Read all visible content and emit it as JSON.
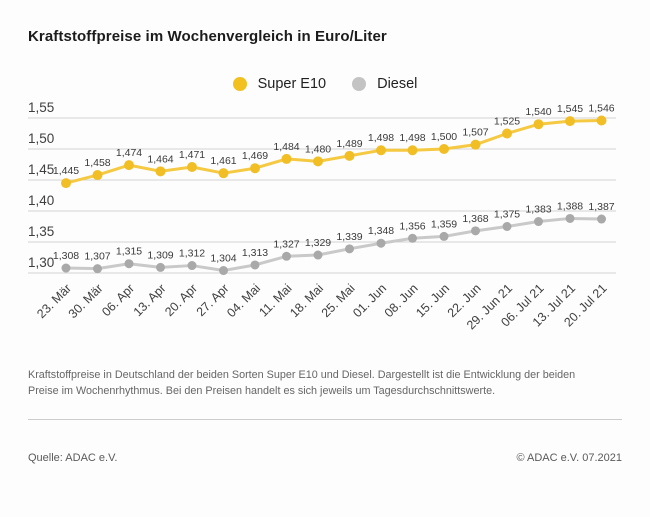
{
  "page": {
    "title": "Kraftstoffpreise im Wochenvergleich in Euro/Liter",
    "description": "Kraftstoffpreise in Deutschland der beiden Sorten Super E10 und Diesel. Dargestellt ist die Entwicklung der beiden Preise im Wochenrhythmus. Bei den Preisen handelt es sich jeweils um Tagesdurchschnittswerte.",
    "source_left": "Quelle: ADAC e.V.",
    "source_right": "© ADAC e.V. 07.2021"
  },
  "legend": [
    {
      "label": "Super E10",
      "color": "#f2c01f"
    },
    {
      "label": "Diesel",
      "color": "#c3c3c3"
    }
  ],
  "colors": {
    "grid_line": "#d2d2d2",
    "axis_text": "#3f3f3f",
    "value_label_text": "#3b3b3b",
    "super_e10_line": "#f5c942",
    "super_e10_dot": "#f1bf25",
    "diesel_line": "#c9c9c9",
    "diesel_dot": "#a9a9a9"
  },
  "chart_data": {
    "type": "line",
    "title": "Kraftstoffpreise im Wochenvergleich in Euro/Liter",
    "categories": [
      "23. Mär",
      "30. Mär",
      "06. Apr",
      "13. Apr",
      "20. Apr",
      "27. Apr",
      "04. Mai",
      "11. Mai",
      "18. Mai",
      "25. Mai",
      "01. Jun",
      "08. Jun",
      "15. Jun",
      "22. Jun",
      "29. Jun 21",
      "06. Jul 21",
      "13. Jul 21",
      "20. Jul 21"
    ],
    "series": [
      {
        "name": "Super E10",
        "values": [
          1.445,
          1.458,
          1.474,
          1.464,
          1.471,
          1.461,
          1.469,
          1.484,
          1.48,
          1.489,
          1.498,
          1.498,
          1.5,
          1.507,
          1.525,
          1.54,
          1.545,
          1.546
        ]
      },
      {
        "name": "Diesel",
        "values": [
          1.308,
          1.307,
          1.315,
          1.309,
          1.312,
          1.304,
          1.313,
          1.327,
          1.329,
          1.339,
          1.348,
          1.356,
          1.359,
          1.368,
          1.375,
          1.383,
          1.388,
          1.387
        ]
      }
    ],
    "ylabel": "Euro/Liter",
    "xlabel": "",
    "ylim": [
      1.3,
      1.55
    ],
    "ytick_values": [
      1.55,
      1.5,
      1.45,
      1.4,
      1.35,
      1.3
    ],
    "ytick_labels": [
      "1,55",
      "1,50",
      "1,45",
      "1,40",
      "1,35",
      "1,30"
    ],
    "decimal_separator": ",",
    "grid": true,
    "legend_position": "top-center",
    "point_labels_visible": true
  }
}
